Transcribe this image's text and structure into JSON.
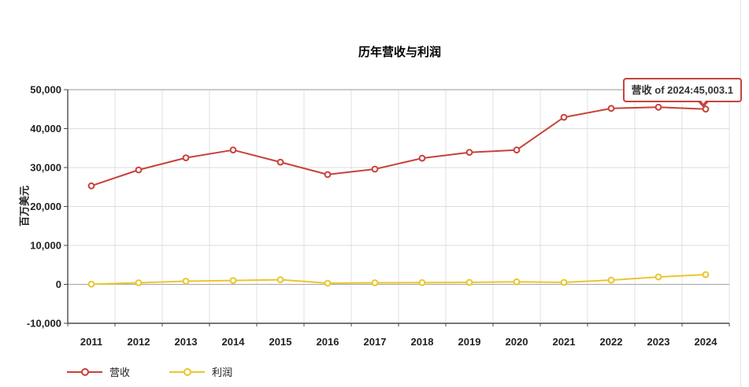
{
  "chart_data": {
    "type": "line",
    "title": "历年营收与利润",
    "xlabel": "",
    "ylabel": "百万美元",
    "categories": [
      "2011",
      "2012",
      "2013",
      "2014",
      "2015",
      "2016",
      "2017",
      "2018",
      "2019",
      "2020",
      "2021",
      "2022",
      "2023",
      "2024"
    ],
    "series": [
      {
        "name": "营收",
        "color": "#c7423a",
        "values": [
          25300,
          29400,
          32500,
          34500,
          31400,
          28200,
          29600,
          32400,
          33900,
          34500,
          42900,
          45200,
          45500,
          45003.1
        ]
      },
      {
        "name": "利润",
        "color": "#eac62e",
        "values": [
          50,
          400,
          800,
          1000,
          1200,
          300,
          400,
          450,
          500,
          650,
          500,
          1100,
          1900,
          2500
        ]
      }
    ],
    "ylim": [
      -10000,
      50000
    ],
    "ytick_step": 10000,
    "ytick_labels": [
      "-10,000",
      "0",
      "10,000",
      "20,000",
      "30,000",
      "40,000",
      "50,000"
    ],
    "grid": true,
    "legend_position": "bottom-left",
    "marker": "open-circle"
  },
  "tooltip": {
    "text": "营收 of 2024:45,003.1",
    "border_color": "#c7423a"
  },
  "legend": {
    "items": [
      {
        "label": "营收"
      },
      {
        "label": "利润"
      }
    ]
  }
}
